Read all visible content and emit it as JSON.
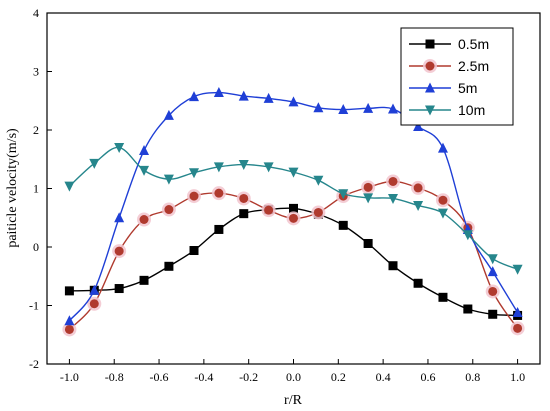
{
  "chart_data": {
    "type": "line",
    "title": "",
    "xlabel": "r/R",
    "ylabel": "paiticle velocity(m/s)",
    "xlim": [
      -1.1,
      1.1
    ],
    "ylim": [
      -2,
      4
    ],
    "xticks": [
      -1.0,
      -0.8,
      -0.6,
      -0.4,
      -0.2,
      0.0,
      0.2,
      0.4,
      0.6,
      0.8,
      1.0
    ],
    "xtick_labels": [
      "-1.0",
      "-0.8",
      "-0.6",
      "-0.4",
      "-0.2",
      "0.0",
      "0.2",
      "0.4",
      "0.6",
      "0.8",
      "1.0"
    ],
    "yticks": [
      -2,
      -1,
      0,
      1,
      2,
      3,
      4
    ],
    "ytick_labels": [
      "-2",
      "-1",
      "0",
      "1",
      "2",
      "3",
      "4"
    ],
    "grid": false,
    "legend_position": "top-right",
    "x": [
      -1.0,
      -0.889,
      -0.778,
      -0.667,
      -0.556,
      -0.444,
      -0.333,
      -0.222,
      -0.111,
      0.0,
      0.111,
      0.222,
      0.333,
      0.444,
      0.556,
      0.667,
      0.778,
      0.889,
      1.0
    ],
    "series": [
      {
        "name": "0.5m",
        "color": "#000000",
        "marker": "square",
        "values": [
          -0.75,
          -0.74,
          -0.71,
          -0.57,
          -0.33,
          -0.06,
          0.3,
          0.57,
          0.64,
          0.66,
          0.56,
          0.37,
          0.06,
          -0.32,
          -0.62,
          -0.86,
          -1.06,
          -1.15,
          -1.17
        ]
      },
      {
        "name": "2.5m",
        "color": "#b03a2e",
        "marker": "circle",
        "values": [
          -1.41,
          -0.97,
          -0.07,
          0.47,
          0.64,
          0.87,
          0.92,
          0.83,
          0.63,
          0.49,
          0.59,
          0.87,
          1.02,
          1.12,
          1.01,
          0.8,
          0.33,
          -0.76,
          -1.39
        ]
      },
      {
        "name": "5m",
        "color": "#1f3fd6",
        "marker": "triangle-up",
        "values": [
          -1.26,
          -0.74,
          0.5,
          1.65,
          2.25,
          2.57,
          2.64,
          2.58,
          2.54,
          2.48,
          2.38,
          2.35,
          2.37,
          2.36,
          2.06,
          1.69,
          0.3,
          -0.42,
          -1.12
        ]
      },
      {
        "name": "10m",
        "color": "#26868c",
        "marker": "triangle-down",
        "values": [
          1.04,
          1.43,
          1.7,
          1.31,
          1.16,
          1.27,
          1.37,
          1.41,
          1.37,
          1.28,
          1.14,
          0.91,
          0.84,
          0.83,
          0.71,
          0.58,
          0.21,
          -0.2,
          -0.38
        ]
      }
    ]
  }
}
